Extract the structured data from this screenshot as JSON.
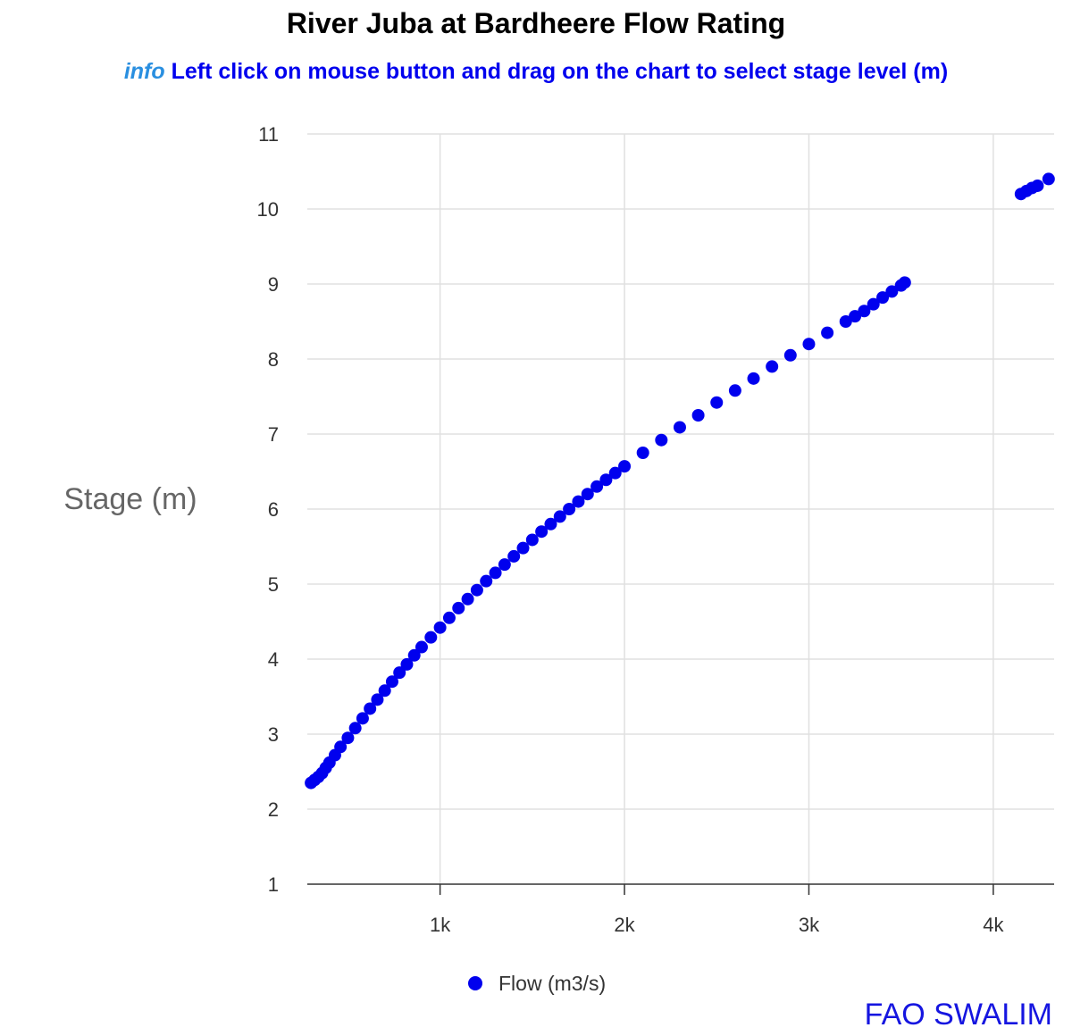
{
  "title": "River Juba at Bardheere Flow Rating",
  "subtitle": {
    "info_word": "info",
    "text": "Left click on mouse button and drag on the chart to select stage level (m)"
  },
  "credit": "FAO SWALIM",
  "colors": {
    "series": "#0000ee",
    "grid": "#e0e0e0",
    "axis": "#333333"
  },
  "chart_data": {
    "type": "scatter",
    "title": "River Juba at Bardheere Flow Rating",
    "xlabel": "",
    "ylabel": "Stage (m)",
    "xlim": [
      280,
      4330
    ],
    "ylim": [
      1,
      11
    ],
    "x_ticks": [
      {
        "value": 1000,
        "label": "1k"
      },
      {
        "value": 2000,
        "label": "2k"
      },
      {
        "value": 3000,
        "label": "3k"
      },
      {
        "value": 4000,
        "label": "4k"
      }
    ],
    "y_ticks": [
      {
        "value": 1,
        "label": "1"
      },
      {
        "value": 2,
        "label": "2"
      },
      {
        "value": 3,
        "label": "3"
      },
      {
        "value": 4,
        "label": "4"
      },
      {
        "value": 5,
        "label": "5"
      },
      {
        "value": 6,
        "label": "6"
      },
      {
        "value": 7,
        "label": "7"
      },
      {
        "value": 8,
        "label": "8"
      },
      {
        "value": 9,
        "label": "9"
      },
      {
        "value": 10,
        "label": "10"
      },
      {
        "value": 11,
        "label": "11"
      }
    ],
    "grid": true,
    "legend_position": "bottom-center",
    "series": [
      {
        "name": "Flow (m3/s)",
        "color": "#0000ee",
        "points": [
          [
            300,
            2.35
          ],
          [
            320,
            2.39
          ],
          [
            340,
            2.43
          ],
          [
            360,
            2.48
          ],
          [
            380,
            2.55
          ],
          [
            400,
            2.62
          ],
          [
            430,
            2.72
          ],
          [
            460,
            2.83
          ],
          [
            500,
            2.95
          ],
          [
            540,
            3.08
          ],
          [
            580,
            3.21
          ],
          [
            620,
            3.34
          ],
          [
            660,
            3.46
          ],
          [
            700,
            3.58
          ],
          [
            740,
            3.7
          ],
          [
            780,
            3.82
          ],
          [
            820,
            3.93
          ],
          [
            860,
            4.05
          ],
          [
            900,
            4.16
          ],
          [
            950,
            4.29
          ],
          [
            1000,
            4.42
          ],
          [
            1050,
            4.55
          ],
          [
            1100,
            4.68
          ],
          [
            1150,
            4.8
          ],
          [
            1200,
            4.92
          ],
          [
            1250,
            5.04
          ],
          [
            1300,
            5.15
          ],
          [
            1350,
            5.26
          ],
          [
            1400,
            5.37
          ],
          [
            1450,
            5.48
          ],
          [
            1500,
            5.59
          ],
          [
            1550,
            5.7
          ],
          [
            1600,
            5.8
          ],
          [
            1650,
            5.9
          ],
          [
            1700,
            6.0
          ],
          [
            1750,
            6.1
          ],
          [
            1800,
            6.2
          ],
          [
            1850,
            6.3
          ],
          [
            1900,
            6.39
          ],
          [
            1950,
            6.48
          ],
          [
            2000,
            6.57
          ],
          [
            2100,
            6.75
          ],
          [
            2200,
            6.92
          ],
          [
            2300,
            7.09
          ],
          [
            2400,
            7.25
          ],
          [
            2500,
            7.42
          ],
          [
            2600,
            7.58
          ],
          [
            2700,
            7.74
          ],
          [
            2800,
            7.9
          ],
          [
            2900,
            8.05
          ],
          [
            3000,
            8.2
          ],
          [
            3100,
            8.35
          ],
          [
            3200,
            8.5
          ],
          [
            3250,
            8.57
          ],
          [
            3300,
            8.64
          ],
          [
            3350,
            8.73
          ],
          [
            3400,
            8.82
          ],
          [
            3450,
            8.9
          ],
          [
            3500,
            8.98
          ],
          [
            3520,
            9.02
          ],
          [
            4150,
            10.2
          ],
          [
            4180,
            10.24
          ],
          [
            4210,
            10.28
          ],
          [
            4240,
            10.31
          ],
          [
            4300,
            10.4
          ]
        ]
      }
    ]
  }
}
